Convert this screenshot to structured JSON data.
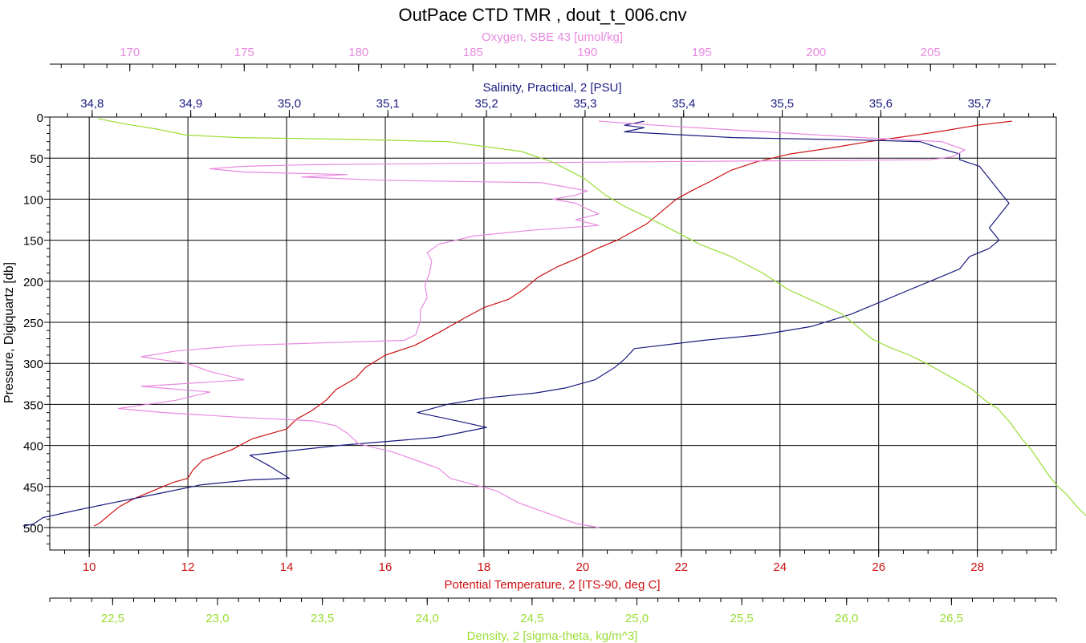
{
  "chart_data": {
    "type": "line",
    "title": "OutPace CTD TMR , dout_t_006.cnv",
    "y_axis": {
      "label": "Pressure, Digiquartz [db]",
      "range": [
        0,
        520
      ],
      "ticks": [
        "0",
        "50",
        "100",
        "150",
        "200",
        "250",
        "300",
        "350",
        "400",
        "450",
        "500"
      ],
      "inverted": true
    },
    "x_axes": {
      "oxygen": {
        "label": "Oxygen, SBE 43 [umol/kg]",
        "position": "top",
        "range": [
          166.5,
          210.5
        ],
        "ticks": [
          "170",
          "175",
          "180",
          "185",
          "190",
          "195",
          "200",
          "205"
        ],
        "color": "#e88ae0"
      },
      "salinity": {
        "label": "Salinity, Practical, 2 [PSU]",
        "position": "top",
        "range": [
          34.757,
          35.778
        ],
        "ticks": [
          "34,8",
          "34,9",
          "35,0",
          "35,1",
          "35,2",
          "35,3",
          "35,4",
          "35,5",
          "35,6",
          "35,7"
        ],
        "color": "#1a1a80"
      },
      "temperature": {
        "label": "Potential Temperature, 2 [ITS-90, deg C]",
        "position": "bottom",
        "range": [
          9.2,
          29.6
        ],
        "ticks": [
          "10",
          "12",
          "14",
          "16",
          "18",
          "20",
          "22",
          "24",
          "26",
          "28"
        ],
        "color": "#cc1111"
      },
      "density": {
        "label": "Density, 2 [sigma-theta, kg/m^3]",
        "position": "bottom",
        "range": [
          22.2,
          27.0
        ],
        "ticks": [
          "22,5",
          "23,0",
          "23,5",
          "24,0",
          "24,5",
          "25,0",
          "25,5",
          "26,0",
          "26,5"
        ],
        "color": "#99dd33"
      }
    },
    "grid": true,
    "series": [
      {
        "key": "temperature",
        "color": "#cc1111",
        "points": [
          [
            28.7,
            5
          ],
          [
            28.0,
            10
          ],
          [
            27.2,
            18
          ],
          [
            26.5,
            24
          ],
          [
            25.8,
            30
          ],
          [
            25.0,
            38
          ],
          [
            24.2,
            45
          ],
          [
            23.5,
            55
          ],
          [
            23.0,
            65
          ],
          [
            22.6,
            78
          ],
          [
            22.2,
            90
          ],
          [
            21.9,
            100
          ],
          [
            21.7,
            110
          ],
          [
            21.5,
            120
          ],
          [
            21.3,
            130
          ],
          [
            21.0,
            140
          ],
          [
            20.7,
            150
          ],
          [
            20.3,
            160
          ],
          [
            19.9,
            172
          ],
          [
            19.5,
            182
          ],
          [
            19.1,
            195
          ],
          [
            18.8,
            210
          ],
          [
            18.5,
            222
          ],
          [
            18.0,
            232
          ],
          [
            17.6,
            245
          ],
          [
            17.1,
            262
          ],
          [
            16.6,
            278
          ],
          [
            16.0,
            290
          ],
          [
            15.6,
            305
          ],
          [
            15.4,
            318
          ],
          [
            15.0,
            332
          ],
          [
            14.8,
            345
          ],
          [
            14.5,
            358
          ],
          [
            14.2,
            368
          ],
          [
            14.0,
            380
          ],
          [
            13.3,
            392
          ],
          [
            12.9,
            405
          ],
          [
            12.3,
            418
          ],
          [
            12.1,
            430
          ],
          [
            12.0,
            440
          ],
          [
            11.7,
            445
          ],
          [
            11.3,
            455
          ],
          [
            10.9,
            465
          ],
          [
            10.6,
            475
          ],
          [
            10.4,
            485
          ],
          [
            10.2,
            495
          ],
          [
            10.1,
            498
          ]
        ]
      },
      {
        "key": "salinity",
        "color": "#1a1a80",
        "points": [
          [
            35.36,
            5
          ],
          [
            35.34,
            10
          ],
          [
            35.36,
            13
          ],
          [
            35.34,
            18
          ],
          [
            35.45,
            25
          ],
          [
            35.58,
            28
          ],
          [
            35.64,
            30
          ],
          [
            35.66,
            38
          ],
          [
            35.68,
            45
          ],
          [
            35.68,
            52
          ],
          [
            35.7,
            60
          ],
          [
            35.71,
            75
          ],
          [
            35.72,
            90
          ],
          [
            35.73,
            105
          ],
          [
            35.72,
            120
          ],
          [
            35.71,
            135
          ],
          [
            35.72,
            150
          ],
          [
            35.71,
            160
          ],
          [
            35.69,
            170
          ],
          [
            35.68,
            185
          ],
          [
            35.66,
            195
          ],
          [
            35.63,
            210
          ],
          [
            35.6,
            225
          ],
          [
            35.57,
            240
          ],
          [
            35.53,
            255
          ],
          [
            35.48,
            265
          ],
          [
            35.42,
            272
          ],
          [
            35.35,
            282
          ],
          [
            35.34,
            295
          ],
          [
            35.33,
            305
          ],
          [
            35.31,
            320
          ],
          [
            35.28,
            330
          ],
          [
            35.25,
            336
          ],
          [
            35.2,
            342
          ],
          [
            35.16,
            350
          ],
          [
            35.13,
            360
          ],
          [
            35.17,
            370
          ],
          [
            35.2,
            378
          ],
          [
            35.15,
            390
          ],
          [
            35.05,
            400
          ],
          [
            34.96,
            412
          ],
          [
            34.98,
            425
          ],
          [
            35.0,
            440
          ],
          [
            34.96,
            442
          ],
          [
            34.91,
            448
          ],
          [
            34.87,
            458
          ],
          [
            34.82,
            470
          ],
          [
            34.78,
            480
          ],
          [
            34.75,
            488
          ],
          [
            34.74,
            496
          ],
          [
            34.73,
            498
          ]
        ]
      },
      {
        "key": "oxygen",
        "color": "#e88ae0",
        "points": [
          [
            190.5,
            5
          ],
          [
            193.0,
            10
          ],
          [
            196.0,
            15
          ],
          [
            199.0,
            20
          ],
          [
            202.0,
            25
          ],
          [
            205.5,
            30
          ],
          [
            206.5,
            40
          ],
          [
            206.0,
            48
          ],
          [
            205.0,
            52
          ],
          [
            190.0,
            55
          ],
          [
            178.0,
            58
          ],
          [
            175.0,
            60
          ],
          [
            173.5,
            63
          ],
          [
            175.0,
            67
          ],
          [
            179.5,
            70
          ],
          [
            177.5,
            73
          ],
          [
            181.0,
            77
          ],
          [
            188.0,
            80
          ],
          [
            189.0,
            85
          ],
          [
            190.0,
            90
          ],
          [
            189.5,
            95
          ],
          [
            188.5,
            100
          ],
          [
            189.5,
            105
          ],
          [
            190.0,
            112
          ],
          [
            190.5,
            118
          ],
          [
            189.5,
            125
          ],
          [
            190.5,
            132
          ],
          [
            187.5,
            138
          ],
          [
            185.0,
            145
          ],
          [
            183.5,
            155
          ],
          [
            183.0,
            165
          ],
          [
            183.2,
            175
          ],
          [
            183.1,
            190
          ],
          [
            182.9,
            205
          ],
          [
            183.0,
            220
          ],
          [
            182.7,
            235
          ],
          [
            182.7,
            248
          ],
          [
            182.5,
            265
          ],
          [
            182.0,
            272
          ],
          [
            175.0,
            278
          ],
          [
            172.0,
            285
          ],
          [
            170.5,
            292
          ],
          [
            172.5,
            300
          ],
          [
            173.5,
            310
          ],
          [
            175.0,
            320
          ],
          [
            170.5,
            328
          ],
          [
            173.5,
            335
          ],
          [
            172.0,
            345
          ],
          [
            169.5,
            355
          ],
          [
            171.5,
            360
          ],
          [
            175.0,
            366
          ],
          [
            178.0,
            370
          ],
          [
            179.0,
            376
          ],
          [
            179.5,
            385
          ],
          [
            180.0,
            398
          ],
          [
            181.5,
            408
          ],
          [
            182.5,
            418
          ],
          [
            183.5,
            428
          ],
          [
            184.0,
            440
          ],
          [
            186.0,
            455
          ],
          [
            187.0,
            470
          ],
          [
            188.5,
            485
          ],
          [
            189.5,
            495
          ],
          [
            190.5,
            500
          ]
        ]
      },
      {
        "key": "density",
        "color": "#99dd33",
        "points": [
          [
            22.43,
            2
          ],
          [
            22.55,
            8
          ],
          [
            22.72,
            15
          ],
          [
            22.85,
            22
          ],
          [
            23.1,
            25
          ],
          [
            23.6,
            27
          ],
          [
            24.1,
            30
          ],
          [
            24.45,
            42
          ],
          [
            24.6,
            55
          ],
          [
            24.75,
            75
          ],
          [
            24.85,
            95
          ],
          [
            24.95,
            110
          ],
          [
            25.05,
            122
          ],
          [
            25.15,
            135
          ],
          [
            25.3,
            155
          ],
          [
            25.45,
            170
          ],
          [
            25.6,
            190
          ],
          [
            25.72,
            210
          ],
          [
            25.85,
            225
          ],
          [
            25.98,
            240
          ],
          [
            26.05,
            255
          ],
          [
            26.12,
            270
          ],
          [
            26.2,
            280
          ],
          [
            26.3,
            290
          ],
          [
            26.38,
            300
          ],
          [
            26.45,
            310
          ],
          [
            26.52,
            320
          ],
          [
            26.6,
            332
          ],
          [
            26.66,
            345
          ],
          [
            26.72,
            355
          ],
          [
            26.78,
            372
          ],
          [
            26.83,
            390
          ],
          [
            26.88,
            405
          ],
          [
            26.92,
            420
          ],
          [
            26.96,
            435
          ],
          [
            27.0,
            448
          ],
          [
            27.05,
            460
          ],
          [
            27.1,
            475
          ],
          [
            27.16,
            490
          ],
          [
            27.2,
            500
          ]
        ]
      }
    ]
  }
}
